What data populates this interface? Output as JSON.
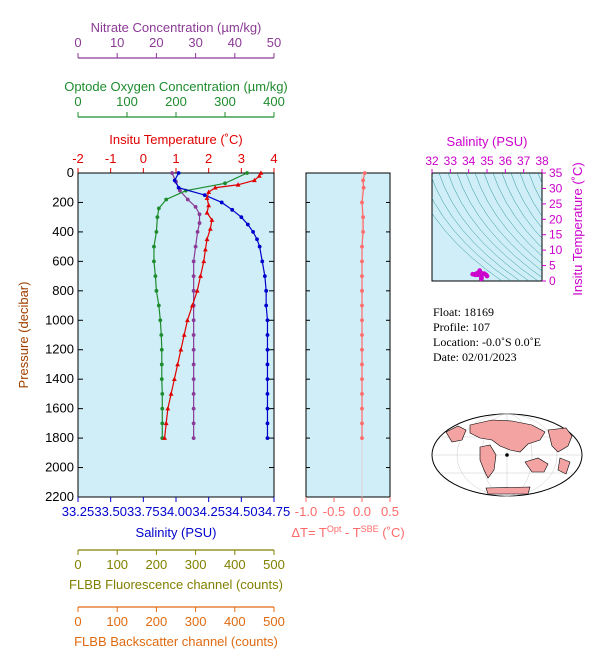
{
  "colors": {
    "nitrate": "#8b3a96",
    "oxygen": "#1e8c2e",
    "temperature": "#e00000",
    "salinity": "#0000cc",
    "delta": "#ff6a6a",
    "fluorescence": "#808000",
    "backscatter": "#e06a10",
    "inset": "#cc00cc",
    "panel_bg": "#cfeef8",
    "ts_line": "#008080"
  },
  "axes": {
    "nitrate": {
      "label": "Nitrate Concentration (µm/kg)",
      "ticks": [
        "0",
        "10",
        "20",
        "30",
        "40",
        "50"
      ],
      "range": [
        0,
        50
      ]
    },
    "oxygen": {
      "label": "Optode Oxygen Concentration (µm/kg)",
      "ticks": [
        "0",
        "100",
        "200",
        "300",
        "400"
      ],
      "range": [
        0,
        400
      ]
    },
    "temperature": {
      "label": "Insitu Temperature (˚C)",
      "ticks": [
        "-2",
        "-1",
        "0",
        "1",
        "2",
        "3",
        "4"
      ],
      "range": [
        -2,
        4
      ]
    },
    "pressure": {
      "label": "Pressure (decibar)",
      "ticks": [
        "0",
        "200",
        "400",
        "600",
        "800",
        "1000",
        "1200",
        "1400",
        "1600",
        "1800",
        "2000",
        "2200"
      ],
      "range": [
        0,
        2200
      ]
    },
    "salinity": {
      "label": "Salinity (PSU)",
      "ticks": [
        "33.25",
        "33.50",
        "33.75",
        "34.00",
        "34.25",
        "34.50",
        "34.75"
      ],
      "range": [
        33.25,
        34.75
      ]
    },
    "delta": {
      "label_main": "ΔT= T",
      "label_sup1": "Opt",
      "label_mid": " - T",
      "label_sup2": "SBE",
      "label_end": " (˚C)",
      "ticks": [
        "-1.0",
        "-0.5",
        "0.0",
        "0.5"
      ],
      "range": [
        -1.0,
        0.5
      ]
    },
    "fluorescence": {
      "label": "FLBB Fluorescence channel (counts)",
      "ticks": [
        "0",
        "100",
        "200",
        "300",
        "400",
        "500"
      ],
      "range": [
        0,
        500
      ]
    },
    "backscatter": {
      "label": "FLBB Backscatter channel (counts)",
      "ticks": [
        "0",
        "100",
        "200",
        "300",
        "400",
        "500"
      ],
      "range": [
        0,
        500
      ]
    },
    "inset_salinity": {
      "label": "Salinity (PSU)",
      "ticks": [
        "32",
        "33",
        "34",
        "35",
        "36",
        "37",
        "38"
      ],
      "range": [
        32,
        38
      ]
    },
    "inset_temperature": {
      "label": "Insitu Temperature (˚C)",
      "ticks": [
        "0",
        "5",
        "10",
        "15",
        "20",
        "25",
        "30",
        "35"
      ],
      "range": [
        0,
        35
      ]
    }
  },
  "info": {
    "float": "Float:  18169",
    "profile": "Profile:  107",
    "location": "Location:  -0.0˚S   0.0˚E",
    "date": "Date:  02/01/2023"
  },
  "chart_data": [
    {
      "type": "line",
      "name": "temperature",
      "x_unit": "˚C",
      "points": [
        [
          3.6,
          0
        ],
        [
          3.55,
          20
        ],
        [
          3.4,
          50
        ],
        [
          2.9,
          80
        ],
        [
          2.2,
          100
        ],
        [
          2.0,
          130
        ],
        [
          1.95,
          170
        ],
        [
          2.0,
          220
        ],
        [
          1.95,
          270
        ],
        [
          2.1,
          320
        ],
        [
          2.05,
          380
        ],
        [
          1.95,
          450
        ],
        [
          1.9,
          520
        ],
        [
          1.85,
          600
        ],
        [
          1.75,
          700
        ],
        [
          1.65,
          800
        ],
        [
          1.5,
          900
        ],
        [
          1.35,
          1000
        ],
        [
          1.25,
          1100
        ],
        [
          1.15,
          1200
        ],
        [
          1.05,
          1300
        ],
        [
          0.95,
          1400
        ],
        [
          0.85,
          1500
        ],
        [
          0.75,
          1600
        ],
        [
          0.7,
          1700
        ],
        [
          0.65,
          1800
        ]
      ]
    },
    {
      "type": "line",
      "name": "salinity",
      "x_unit": "PSU",
      "points": [
        [
          34.02,
          0
        ],
        [
          33.99,
          50
        ],
        [
          34.02,
          100
        ],
        [
          34.22,
          150
        ],
        [
          34.35,
          200
        ],
        [
          34.43,
          250
        ],
        [
          34.5,
          300
        ],
        [
          34.55,
          350
        ],
        [
          34.59,
          400
        ],
        [
          34.62,
          450
        ],
        [
          34.64,
          500
        ],
        [
          34.66,
          600
        ],
        [
          34.68,
          700
        ],
        [
          34.69,
          800
        ],
        [
          34.69,
          900
        ],
        [
          34.7,
          1000
        ],
        [
          34.7,
          1100
        ],
        [
          34.7,
          1200
        ],
        [
          34.7,
          1300
        ],
        [
          34.7,
          1400
        ],
        [
          34.7,
          1500
        ],
        [
          34.7,
          1600
        ],
        [
          34.7,
          1700
        ],
        [
          34.7,
          1800
        ]
      ]
    },
    {
      "type": "line",
      "name": "oxygen",
      "x_unit": "µm/kg",
      "points": [
        [
          345,
          0
        ],
        [
          300,
          70
        ],
        [
          220,
          120
        ],
        [
          180,
          180
        ],
        [
          165,
          240
        ],
        [
          162,
          300
        ],
        [
          160,
          400
        ],
        [
          155,
          500
        ],
        [
          155,
          600
        ],
        [
          158,
          700
        ],
        [
          160,
          800
        ],
        [
          165,
          900
        ],
        [
          168,
          1000
        ],
        [
          170,
          1100
        ],
        [
          171,
          1200
        ],
        [
          171,
          1300
        ],
        [
          171,
          1400
        ],
        [
          172,
          1500
        ],
        [
          172,
          1600
        ],
        [
          172,
          1700
        ],
        [
          172,
          1800
        ]
      ]
    },
    {
      "type": "line",
      "name": "nitrate",
      "x_unit": "µm/kg",
      "points": [
        [
          24,
          0
        ],
        [
          25,
          60
        ],
        [
          26,
          120
        ],
        [
          28,
          180
        ],
        [
          30,
          230
        ],
        [
          31,
          280
        ],
        [
          31,
          340
        ],
        [
          30.5,
          400
        ],
        [
          30,
          500
        ],
        [
          29.5,
          600
        ],
        [
          29.5,
          700
        ],
        [
          29.5,
          800
        ],
        [
          29.5,
          900
        ],
        [
          29.5,
          1000
        ],
        [
          29.5,
          1100
        ],
        [
          29.5,
          1200
        ],
        [
          29.5,
          1300
        ],
        [
          29.5,
          1400
        ],
        [
          29.5,
          1500
        ],
        [
          29.5,
          1600
        ],
        [
          29.5,
          1700
        ],
        [
          29.5,
          1800
        ]
      ]
    },
    {
      "type": "line",
      "name": "delta_t",
      "x_unit": "˚C",
      "points": [
        [
          0.05,
          0
        ],
        [
          0.02,
          50
        ],
        [
          0.03,
          100
        ],
        [
          0.0,
          200
        ],
        [
          0.02,
          300
        ],
        [
          0.02,
          400
        ],
        [
          0.0,
          500
        ],
        [
          0.0,
          600
        ],
        [
          0.0,
          700
        ],
        [
          0.0,
          800
        ],
        [
          0.0,
          900
        ],
        [
          0.0,
          1000
        ],
        [
          0.0,
          1100
        ],
        [
          0.0,
          1200
        ],
        [
          0.0,
          1300
        ],
        [
          0.0,
          1400
        ],
        [
          0.0,
          1500
        ],
        [
          0.0,
          1600
        ],
        [
          0.0,
          1700
        ],
        [
          0.0,
          1800
        ]
      ]
    },
    {
      "type": "scatter",
      "name": "ts_inset",
      "points": [
        [
          34.69,
          0.65
        ],
        [
          34.7,
          0.9
        ],
        [
          34.7,
          1.2
        ],
        [
          34.68,
          1.5
        ],
        [
          34.66,
          1.8
        ],
        [
          34.62,
          2.0
        ],
        [
          34.55,
          2.05
        ],
        [
          34.45,
          2.0
        ],
        [
          34.35,
          2.0
        ],
        [
          34.22,
          2.2
        ],
        [
          34.6,
          3.4
        ],
        [
          34.85,
          2.4
        ],
        [
          34.95,
          2.0
        ],
        [
          35.0,
          1.6
        ]
      ]
    }
  ]
}
